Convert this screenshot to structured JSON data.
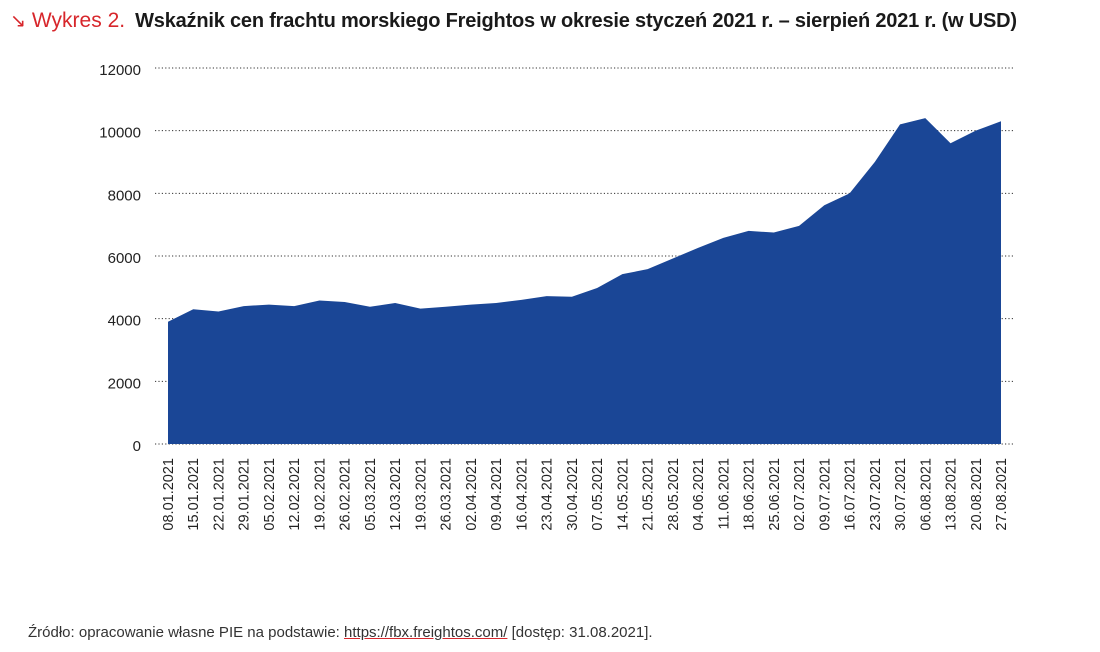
{
  "header": {
    "arrow_glyph": "↘",
    "label": "Wykres 2.",
    "title": "Wskaźnik cen frachtu morskiego Freightos w okresie styczeń 2021 r. – sierpień 2021 r. (w USD)"
  },
  "source": {
    "prefix": "Źródło: opracowanie własne PIE na podstawie: ",
    "link_text": "https://fbx.freightos.com/",
    "suffix": " [dostęp: 31.08.2021]."
  },
  "colors": {
    "area": "#1a4696",
    "accent": "#d7262b",
    "grid": "#333333"
  },
  "chart_data": {
    "type": "area",
    "title": "Wskaźnik cen frachtu morskiego Freightos w okresie styczeń 2021 r. – sierpień 2021 r. (w USD)",
    "xlabel": "",
    "ylabel": "",
    "ylim": [
      0,
      12000
    ],
    "yticks": [
      0,
      2000,
      4000,
      6000,
      8000,
      10000,
      12000
    ],
    "ytick_labels": [
      "0",
      "2000",
      "4000",
      "6000",
      "8000",
      "10000",
      "12000"
    ],
    "grid": true,
    "legend": "none",
    "categories": [
      "08.01.2021",
      "15.01.2021",
      "22.01.2021",
      "29.01.2021",
      "05.02.2021",
      "12.02.2021",
      "19.02.2021",
      "26.02.2021",
      "05.03.2021",
      "12.03.2021",
      "19.03.2021",
      "26.03.2021",
      "02.04.2021",
      "09.04.2021",
      "16.04.2021",
      "23.04.2021",
      "30.04.2021",
      "07.05.2021",
      "14.05.2021",
      "21.05.2021",
      "28.05.2021",
      "04.06.2021",
      "11.06.2021",
      "18.06.2021",
      "25.06.2021",
      "02.07.2021",
      "09.07.2021",
      "16.07.2021",
      "23.07.2021",
      "30.07.2021",
      "06.08.2021",
      "13.08.2021",
      "20.08.2021",
      "27.08.2021"
    ],
    "series": [
      {
        "values": [
          3900,
          4300,
          4230,
          4400,
          4450,
          4400,
          4580,
          4530,
          4380,
          4500,
          4320,
          4380,
          4450,
          4500,
          4600,
          4720,
          4700,
          4980,
          5420,
          5580,
          5920,
          6260,
          6580,
          6800,
          6750,
          6960,
          7620,
          8000,
          9000,
          10200,
          10400,
          9600,
          10000,
          10300
        ]
      }
    ]
  }
}
